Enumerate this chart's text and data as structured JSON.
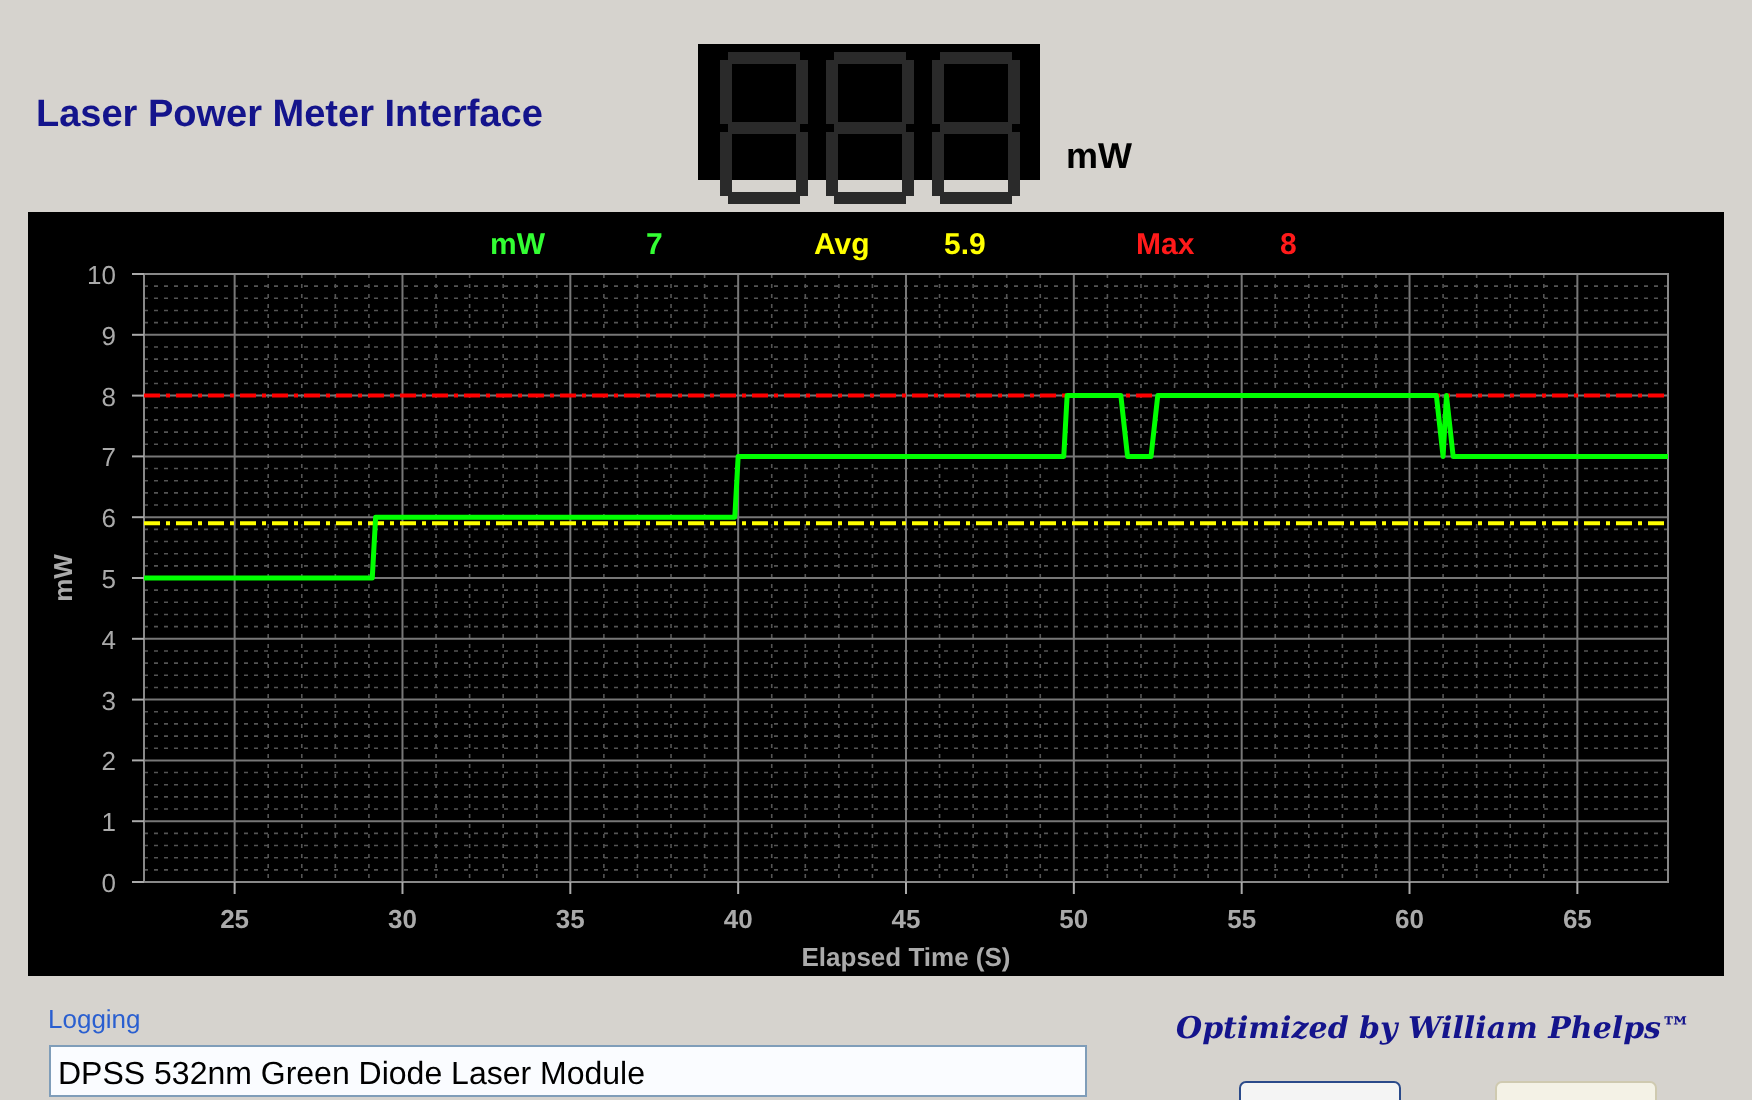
{
  "chart_data": {
    "type": "line",
    "title": "Laser Power Meter Interface",
    "xlabel": "Elapsed Time (S)",
    "ylabel": "mW",
    "annotations": [
      "mW",
      "7",
      "Avg",
      "5.9",
      "Max",
      "8",
      "mW",
      "Logging",
      "DPSS 532nm Green Diode Laser Module",
      "Optimized by William Phelps™"
    ],
    "series": [
      {
        "color": "#00ff00",
        "x": [
          22.3,
          29.1,
          29.2,
          39.9,
          40.0,
          49.7,
          49.8,
          51.4,
          51.6,
          52.3,
          52.5,
          60.8,
          61.0,
          61.1,
          61.3,
          67.7
        ],
        "values": [
          5,
          5,
          6,
          6,
          7,
          7,
          8,
          8,
          7,
          7,
          8,
          8,
          7,
          8,
          7,
          7
        ]
      }
    ],
    "ref_lines": [
      {
        "axis": "y",
        "value": 8,
        "color": "#ff0000",
        "line_style": "dashdot"
      },
      {
        "axis": "y",
        "value": 5.9,
        "color": "#ffff00",
        "line_style": "dashdot"
      }
    ],
    "xlim": [
      22.3,
      67.7
    ],
    "ylim": [
      0,
      10
    ],
    "xticks": [
      25,
      30,
      35,
      40,
      45,
      50,
      55,
      60,
      65
    ],
    "yticks": [
      0,
      1,
      2,
      3,
      4,
      5,
      6,
      7,
      8,
      9,
      10
    ],
    "grid": true,
    "marker": "none",
    "line_style": "solid"
  }
}
